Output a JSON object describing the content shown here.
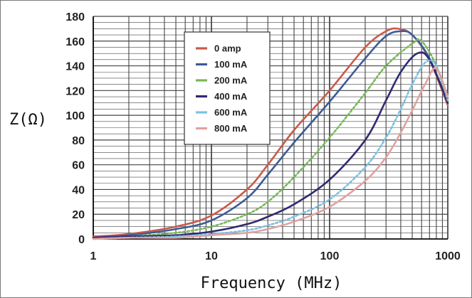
{
  "chart_data": {
    "type": "line",
    "title": "",
    "xlabel": "Frequency (MHz)",
    "ylabel": "Z(Ω)",
    "x_scale": "log",
    "xlim": [
      1,
      1000
    ],
    "ylim": [
      0,
      180
    ],
    "x_ticks": [
      "1",
      "10",
      "100",
      "1000"
    ],
    "y_ticks": [
      "0",
      "20",
      "40",
      "60",
      "80",
      "100",
      "120",
      "140",
      "160",
      "180"
    ],
    "grid": true,
    "legend_position": "top-center",
    "series": [
      {
        "name": "0 amp",
        "color": "#c85a4a",
        "dash": "solid",
        "points": [
          [
            1,
            2
          ],
          [
            2,
            4
          ],
          [
            5,
            10
          ],
          [
            10,
            19
          ],
          [
            20,
            40
          ],
          [
            30,
            60
          ],
          [
            50,
            88
          ],
          [
            100,
            120
          ],
          [
            200,
            155
          ],
          [
            300,
            168
          ],
          [
            380,
            170
          ],
          [
            500,
            165
          ],
          [
            700,
            145
          ],
          [
            1000,
            108
          ]
        ]
      },
      {
        "name": "100 mA",
        "color": "#3e5b96",
        "dash": "solid",
        "points": [
          [
            1,
            1
          ],
          [
            2,
            3
          ],
          [
            5,
            8
          ],
          [
            10,
            15
          ],
          [
            20,
            33
          ],
          [
            30,
            52
          ],
          [
            50,
            78
          ],
          [
            100,
            111
          ],
          [
            200,
            146
          ],
          [
            300,
            164
          ],
          [
            400,
            168
          ],
          [
            500,
            165
          ],
          [
            700,
            146
          ],
          [
            1000,
            110
          ]
        ]
      },
      {
        "name": "200 mA",
        "color": "#78b85a",
        "dash": "dashed",
        "points": [
          [
            1,
            1
          ],
          [
            2,
            2
          ],
          [
            5,
            5
          ],
          [
            10,
            10
          ],
          [
            20,
            20
          ],
          [
            30,
            30
          ],
          [
            50,
            50
          ],
          [
            100,
            82
          ],
          [
            200,
            118
          ],
          [
            300,
            140
          ],
          [
            500,
            158
          ],
          [
            600,
            160
          ],
          [
            800,
            140
          ],
          [
            1000,
            110
          ]
        ]
      },
      {
        "name": "400 mA",
        "color": "#2f2a70",
        "dash": "solid",
        "points": [
          [
            1,
            1
          ],
          [
            2,
            2
          ],
          [
            5,
            3
          ],
          [
            10,
            6
          ],
          [
            20,
            12
          ],
          [
            30,
            18
          ],
          [
            50,
            28
          ],
          [
            100,
            48
          ],
          [
            200,
            80
          ],
          [
            300,
            112
          ],
          [
            400,
            135
          ],
          [
            550,
            150
          ],
          [
            700,
            145
          ],
          [
            1000,
            110
          ]
        ]
      },
      {
        "name": "600 mA",
        "color": "#7cc0e0",
        "dash": "dashed",
        "points": [
          [
            1,
            0
          ],
          [
            2,
            1
          ],
          [
            5,
            2
          ],
          [
            10,
            4
          ],
          [
            20,
            7
          ],
          [
            30,
            11
          ],
          [
            50,
            18
          ],
          [
            100,
            32
          ],
          [
            200,
            58
          ],
          [
            300,
            82
          ],
          [
            400,
            105
          ],
          [
            500,
            125
          ],
          [
            650,
            143
          ],
          [
            800,
            140
          ],
          [
            1000,
            112
          ]
        ]
      },
      {
        "name": "800 mA",
        "color": "#e0a2a2",
        "dash": "solid",
        "points": [
          [
            1,
            0
          ],
          [
            2,
            1
          ],
          [
            5,
            1
          ],
          [
            10,
            3
          ],
          [
            20,
            5
          ],
          [
            30,
            8
          ],
          [
            50,
            14
          ],
          [
            100,
            26
          ],
          [
            200,
            47
          ],
          [
            300,
            66
          ],
          [
            400,
            86
          ],
          [
            500,
            104
          ],
          [
            650,
            126
          ],
          [
            800,
            138
          ],
          [
            1000,
            115
          ]
        ]
      }
    ]
  }
}
